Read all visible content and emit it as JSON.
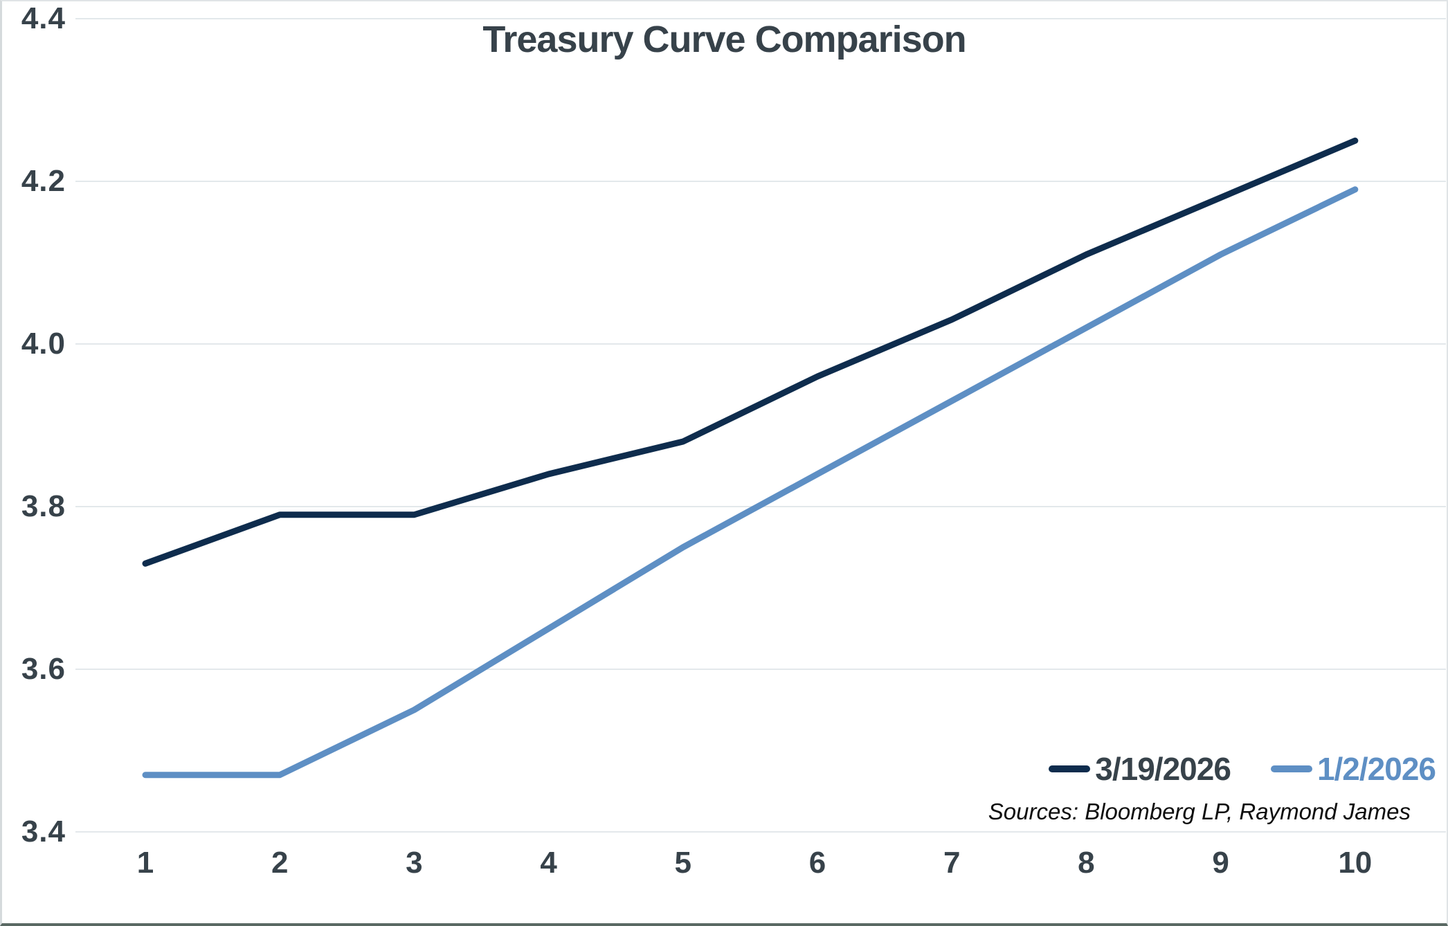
{
  "chart_data": {
    "type": "line",
    "title": "Treasury Curve Comparison",
    "x": [
      1,
      2,
      3,
      4,
      5,
      6,
      7,
      8,
      9,
      10
    ],
    "series": [
      {
        "name": "3/19/2026",
        "color": "#0e2c4d",
        "values": [
          3.73,
          3.79,
          3.79,
          3.84,
          3.88,
          3.96,
          4.03,
          4.11,
          4.18,
          4.25
        ]
      },
      {
        "name": "1/2/2026",
        "color": "#5e8fc4",
        "values": [
          3.47,
          3.47,
          3.55,
          3.65,
          3.75,
          3.84,
          3.93,
          4.02,
          4.11,
          4.19
        ]
      }
    ],
    "xlabel": "",
    "ylabel": "",
    "ylim": [
      3.4,
      4.4
    ],
    "yticks": [
      3.4,
      3.6,
      3.8,
      4.0,
      4.2,
      4.4
    ],
    "grid": "horizontal",
    "legend_position": "inside-bottom-right",
    "source_note": "Sources: Bloomberg LP, Raymond James"
  },
  "colors": {
    "title_text": "#37424a",
    "tick_text": "#37424a",
    "gridline": "#e3e8eb",
    "legend_text": [
      "#37424a",
      "#5e8fc4"
    ],
    "background": "#ffffff"
  }
}
